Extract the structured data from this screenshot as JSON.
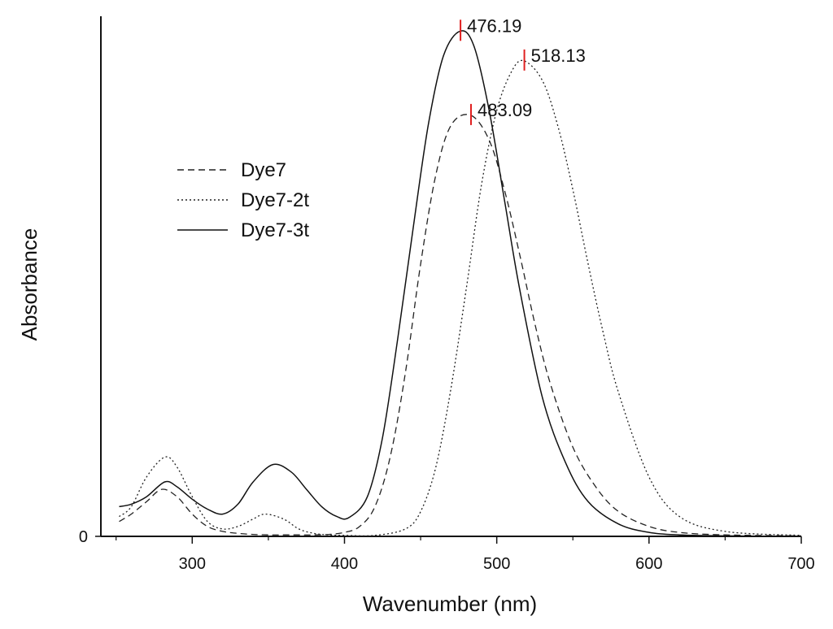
{
  "chart_data": {
    "type": "line",
    "xlabel": "Wavenumber (nm)",
    "ylabel": "Absorbance",
    "xlim": [
      240,
      700
    ],
    "ylim": [
      0,
      1.05
    ],
    "xticks": [
      300,
      400,
      500,
      600,
      700
    ],
    "yticks": [
      0
    ],
    "ytick_labels": [
      "0"
    ],
    "grid": false,
    "legend_position": "center-left",
    "series": [
      {
        "name": "Dye7",
        "style": "dashed",
        "color": "#222222",
        "x": [
          252,
          260,
          270,
          280,
          290,
          300,
          310,
          320,
          330,
          340,
          350,
          360,
          370,
          380,
          390,
          400,
          410,
          420,
          430,
          440,
          450,
          460,
          470,
          483,
          495,
          505,
          515,
          525,
          535,
          550,
          565,
          580,
          600,
          620,
          650,
          700
        ],
        "y": [
          0.03,
          0.045,
          0.07,
          0.095,
          0.08,
          0.045,
          0.02,
          0.01,
          0.006,
          0.004,
          0.003,
          0.003,
          0.003,
          0.003,
          0.004,
          0.008,
          0.02,
          0.06,
          0.16,
          0.33,
          0.55,
          0.73,
          0.83,
          0.85,
          0.8,
          0.7,
          0.57,
          0.43,
          0.31,
          0.18,
          0.1,
          0.05,
          0.02,
          0.008,
          0.003,
          0.001
        ]
      },
      {
        "name": "Dye7-2t",
        "style": "dotted",
        "color": "#222222",
        "x": [
          252,
          260,
          270,
          282,
          290,
          300,
          310,
          320,
          330,
          340,
          348,
          360,
          370,
          380,
          390,
          400,
          420,
          440,
          450,
          460,
          470,
          480,
          490,
          500,
          510,
          518,
          530,
          540,
          550,
          560,
          570,
          580,
          600,
          620,
          650,
          700
        ],
        "y": [
          0.04,
          0.06,
          0.12,
          0.16,
          0.14,
          0.08,
          0.03,
          0.015,
          0.02,
          0.035,
          0.045,
          0.035,
          0.015,
          0.006,
          0.003,
          0.002,
          0.002,
          0.015,
          0.05,
          0.14,
          0.3,
          0.5,
          0.71,
          0.86,
          0.94,
          0.96,
          0.92,
          0.83,
          0.7,
          0.55,
          0.41,
          0.29,
          0.12,
          0.04,
          0.01,
          0.002
        ]
      },
      {
        "name": "Dye7-3t",
        "style": "solid",
        "color": "#111111",
        "x": [
          252,
          260,
          270,
          282,
          290,
          300,
          310,
          320,
          330,
          340,
          353,
          365,
          375,
          385,
          395,
          403,
          415,
          425,
          435,
          445,
          455,
          465,
          476,
          485,
          495,
          505,
          515,
          530,
          545,
          560,
          580,
          600,
          620,
          650,
          700
        ],
        "y": [
          0.06,
          0.065,
          0.08,
          0.11,
          0.1,
          0.075,
          0.055,
          0.045,
          0.065,
          0.11,
          0.145,
          0.13,
          0.095,
          0.06,
          0.04,
          0.038,
          0.08,
          0.2,
          0.4,
          0.62,
          0.83,
          0.97,
          1.02,
          0.99,
          0.86,
          0.68,
          0.5,
          0.28,
          0.15,
          0.07,
          0.025,
          0.008,
          0.003,
          0.001,
          0.0
        ]
      }
    ],
    "annotations": [
      {
        "text": "476.19",
        "x": 476.19,
        "y": 1.02,
        "marker_color": "#e02020"
      },
      {
        "text": "518.13",
        "x": 518.13,
        "y": 0.96,
        "marker_color": "#e02020"
      },
      {
        "text": "483.09",
        "x": 483.09,
        "y": 0.85,
        "marker_color": "#e02020"
      }
    ]
  }
}
